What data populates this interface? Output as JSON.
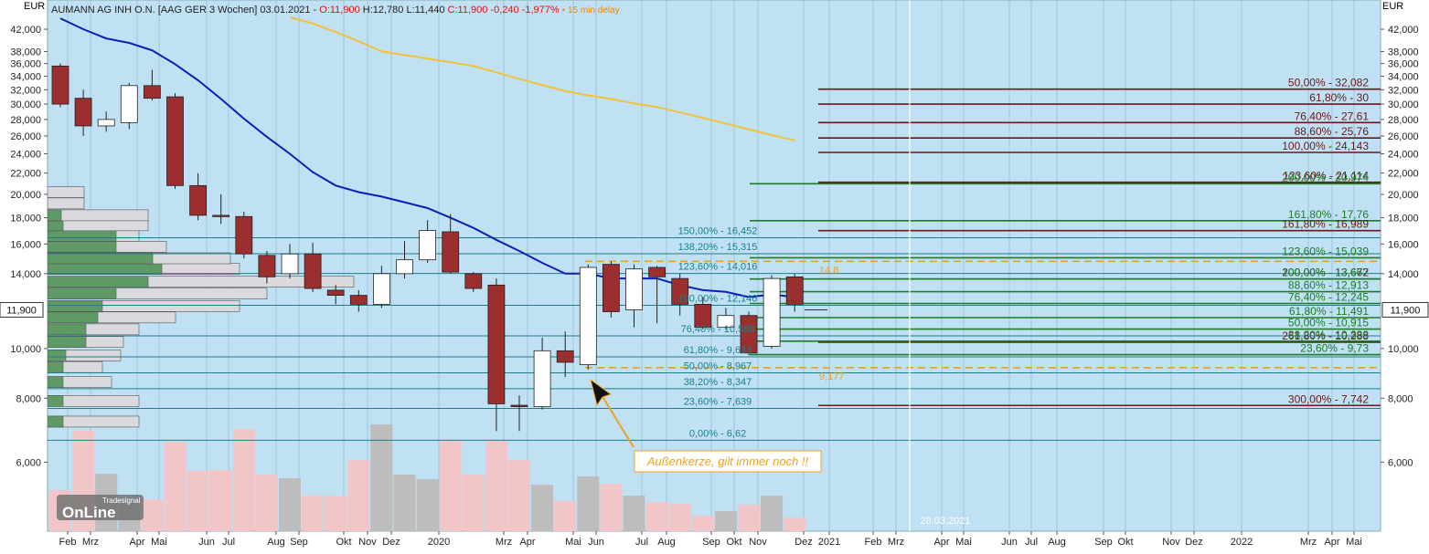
{
  "header": {
    "symbol_info": "AUMANN AG INH O.N. [AAG GER 3 Wochen] 03.01.2021 -",
    "open": "O:11,900",
    "high_low": "H:12,780 L:11,440",
    "close_change": "C:11,900 -0,240 -1,977%",
    "delay": "• 15 min delay"
  },
  "logo": {
    "brand": "Tradesignal",
    "name": "OnLine"
  },
  "chart_data": {
    "type": "candlestick",
    "y_unit_left": "EUR",
    "y_unit_right": "EUR",
    "log_scale": true,
    "grid": "x",
    "ylim": [
      4.4,
      47.9
    ],
    "yticks": [
      {
        "value": 6,
        "label": "6,000"
      },
      {
        "value": 8,
        "label": "8,000"
      },
      {
        "value": 10,
        "label": "10,000"
      },
      {
        "value": 14,
        "label": "14,000"
      },
      {
        "value": 16,
        "label": "16,000"
      },
      {
        "value": 18,
        "label": "18,000"
      },
      {
        "value": 20,
        "label": "20,000"
      },
      {
        "value": 22,
        "label": "22,000"
      },
      {
        "value": 24,
        "label": "24,000"
      },
      {
        "value": 26,
        "label": "26,000"
      },
      {
        "value": 28,
        "label": "28,000"
      },
      {
        "value": 30,
        "label": "30,000"
      },
      {
        "value": 32,
        "label": "32,000"
      },
      {
        "value": 34,
        "label": "34,000"
      },
      {
        "value": 36,
        "label": "36,000"
      },
      {
        "value": 38,
        "label": "38,000"
      },
      {
        "value": 42,
        "label": "42,000"
      }
    ],
    "x_labels": [
      "Feb",
      "Mrz",
      "Apr",
      "Mai",
      "Jun",
      "Jul",
      "Aug",
      "Sep",
      "Okt",
      "Nov",
      "Dez",
      "2020",
      "Mrz",
      "Apr",
      "Mai",
      "Jun",
      "Jul",
      "Aug",
      "Sep",
      "Okt",
      "Nov",
      "Dez",
      "2021",
      "Feb",
      "Mrz",
      "Apr",
      "Mai",
      "Jun",
      "Jul",
      "Aug",
      "Sep",
      "Okt",
      "Nov",
      "Dez",
      "2022",
      "Mrz",
      "Apr",
      "Mai"
    ],
    "date_marker": "28.03.2021",
    "last_price": {
      "value": 11.9,
      "label": "11,900"
    },
    "up_color": "#ffffff",
    "down_color": "#9b2f2f",
    "open": [
      35.6,
      30.8,
      27.2,
      27.6,
      32.6,
      31.0,
      20.8,
      18.2,
      18.1,
      15.2,
      14.0,
      15.3,
      13.0,
      12.7,
      12.2,
      14.0,
      14.9,
      16.9,
      14.0,
      13.3,
      7.75,
      7.7,
      9.9,
      9.3,
      14.6,
      11.9,
      14.4,
      13.7,
      12.2,
      11.0,
      11.6,
      10.1,
      13.8
    ],
    "high": [
      36.0,
      32.0,
      29.0,
      33.0,
      35.0,
      31.5,
      22.0,
      20.0,
      18.5,
      15.5,
      16.0,
      16.1,
      13.3,
      13.0,
      14.5,
      16.2,
      17.8,
      18.3,
      14.1,
      13.7,
      8.1,
      10.5,
      10.8,
      14.6,
      14.8,
      14.6,
      14.5,
      14.0,
      12.6,
      12.0,
      11.8,
      13.9,
      14.0
    ],
    "low": [
      29.6,
      26.0,
      26.5,
      26.8,
      30.5,
      20.5,
      17.8,
      17.5,
      15.0,
      13.4,
      13.7,
      12.9,
      12.2,
      11.8,
      12.0,
      13.7,
      14.7,
      14.0,
      12.9,
      6.9,
      6.9,
      7.6,
      8.8,
      9.1,
      11.5,
      11.0,
      11.2,
      11.6,
      10.9,
      10.9,
      9.7,
      10.0,
      11.8
    ],
    "close": [
      30.0,
      27.2,
      28.0,
      32.6,
      30.8,
      20.8,
      18.2,
      18.1,
      15.3,
      13.8,
      15.3,
      13.1,
      12.7,
      12.2,
      14.0,
      14.9,
      17.0,
      14.1,
      13.1,
      7.8,
      7.7,
      9.9,
      9.4,
      14.4,
      11.8,
      14.3,
      13.8,
      12.2,
      11.0,
      11.6,
      9.8,
      13.7,
      12.2
    ],
    "volume": {
      "values": [
        45,
        110,
        63,
        32,
        35,
        98,
        66,
        67,
        112,
        62,
        58,
        39,
        39,
        78,
        117,
        62,
        57,
        100,
        62,
        99,
        78,
        51,
        33,
        60,
        52,
        39,
        32,
        30,
        17,
        22,
        29,
        39,
        15
      ],
      "vlim": [
        0,
        130
      ],
      "up_color": "#bdbdbd",
      "down_color": "#f2c6c8"
    },
    "series": [
      {
        "color": "#0a1fb4",
        "values": [
          44.1,
          42.0,
          40.3,
          39.5,
          38.2,
          35.9,
          33.4,
          30.7,
          28.1,
          25.9,
          24.0,
          22.1,
          20.8,
          20.2,
          19.8,
          19.3,
          18.8,
          18.0,
          17.2,
          16.3,
          15.5,
          14.7,
          14.0,
          14.0,
          13.7,
          13.7,
          13.7,
          13.3,
          13.0,
          12.9,
          12.6,
          12.75,
          12.6
        ]
      },
      {
        "color": "#f2c13a",
        "values": [
          null,
          null,
          null,
          null,
          null,
          null,
          null,
          null,
          null,
          null,
          44.3,
          43.1,
          41.5,
          39.8,
          38.0,
          37.4,
          36.8,
          36.2,
          35.6,
          34.6,
          33.6,
          32.7,
          31.8,
          31.2,
          30.7,
          30.1,
          29.6,
          28.9,
          28.2,
          27.5,
          26.8,
          26.1,
          25.5
        ]
      }
    ],
    "volume_profile": {
      "price": [
        7.2,
        7.9,
        8.6,
        9.2,
        9.7,
        10.3,
        10.9,
        11.5,
        12.1,
        12.8,
        13.5,
        14.3,
        15.0,
        15.8,
        16.6,
        17.4,
        18.2,
        19.2,
        20.2
      ],
      "total": [
        100,
        100,
        70,
        60,
        80,
        83,
        100,
        140,
        210,
        240,
        335,
        210,
        200,
        130,
        100,
        110,
        110,
        40,
        40
      ],
      "buy": [
        17,
        17,
        17,
        17,
        20,
        42,
        42,
        55,
        60,
        75,
        110,
        125,
        115,
        75,
        75,
        17,
        15,
        0,
        0
      ],
      "color": "#d9d9de",
      "buy_color": "#5f9a66"
    },
    "retracement_levels": {
      "color": "#1d7f8c",
      "levels": [
        {
          "value": 16.452,
          "label": "150,00% - 16,452"
        },
        {
          "value": 15.315,
          "label": "138,20% - 15,315"
        },
        {
          "value": 14.016,
          "label": "123,60% - 14,016"
        },
        {
          "value": 12.146,
          "label": "100,00% - 12,146"
        },
        {
          "value": 10.588,
          "label": "76,40% - 10,588"
        },
        {
          "value": 9.633,
          "label": "61,80% - 9,633"
        },
        {
          "value": 8.967,
          "label": "50,00% - 8,967"
        },
        {
          "value": 8.347,
          "label": "38,20% - 8,347"
        },
        {
          "value": 7.639,
          "label": "23,60% - 7,639"
        },
        {
          "value": 6.62,
          "label": "0,00% - 6,62"
        }
      ]
    },
    "extension_levels_red": {
      "color": "#6e1616",
      "levels": [
        {
          "value": 32.082,
          "label": "50,00% - 32,082"
        },
        {
          "value": 30,
          "label": "61,80% - 30"
        },
        {
          "value": 27.61,
          "label": "76,40% - 27,61"
        },
        {
          "value": 25.76,
          "label": "88,60% - 25,76"
        },
        {
          "value": 24.143,
          "label": "100,00% - 24,143"
        },
        {
          "value": 21.114,
          "label": "123,60% - 21,114"
        },
        {
          "value": 16.989,
          "label": "161,80% - 16,989"
        },
        {
          "value": 13.672,
          "label": "200,00% - 13,672"
        },
        {
          "value": 10.288,
          "label": "261,80% - 10,288"
        },
        {
          "value": 7.742,
          "label": "300,00% - 7,742"
        }
      ]
    },
    "extension_levels_green": {
      "color": "#1c7d26",
      "levels": [
        {
          "value": 20.974,
          "label": "200,00% - 20,974"
        },
        {
          "value": 17.76,
          "label": "161,80% - 17,76"
        },
        {
          "value": 15.039,
          "label": "123,60% - 15,039"
        },
        {
          "value": 13.667,
          "label": "100,00% - 13,667"
        },
        {
          "value": 12.913,
          "label": "88,60% - 12,913"
        },
        {
          "value": 12.245,
          "label": "76,40% - 12,245"
        },
        {
          "value": 11.491,
          "label": "61,80% - 11,491"
        },
        {
          "value": 10.915,
          "label": "50,00% - 10,915"
        },
        {
          "value": 10.338,
          "label": "38,20% - 10,338"
        },
        {
          "value": 9.73,
          "label": "23,60% - 9,73"
        }
      ]
    },
    "marker_levels": {
      "color": "#f0a020",
      "levels": [
        {
          "value": 14.8,
          "label": "14,8"
        },
        {
          "value": 9.177,
          "label": "9,177"
        }
      ]
    },
    "annotation": "Außenkerze, gilt immer noch !!"
  }
}
